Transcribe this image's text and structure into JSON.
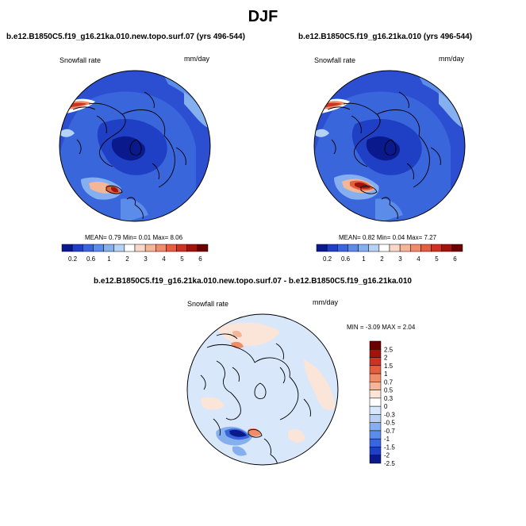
{
  "main_title": "DJF",
  "panels": [
    {
      "title": "b.e12.B1850C5.f19_g16.21ka.010.new.topo.surf.07 (yrs 496-544)",
      "variable": "Snowfall rate",
      "units": "mm/day",
      "stats": {
        "mean_label": "MEAN=",
        "mean": "0.79",
        "min_label": "Min=",
        "min": "0.01",
        "max_label": "Max=",
        "max": "8.06"
      }
    },
    {
      "title": "b.e12.B1850C5.f19_g16.21ka.010 (yrs 496-544)",
      "variable": "Snowfall rate",
      "units": "mm/day",
      "stats": {
        "mean_label": "MEAN=",
        "mean": "0.82",
        "min_label": "Min=",
        "min": "0.04",
        "max_label": "Max=",
        "max": "7.27"
      }
    },
    {
      "title": "b.e12.B1850C5.f19_g16.21ka.010.new.topo.surf.07 - b.e12.B1850C5.f19_g16.21ka.010",
      "variable": "Snowfall rate",
      "units": "mm/day",
      "stats": {
        "min_label": "MIN =",
        "min": "-3.09",
        "max_label": "MAX =",
        "max": "2.04"
      }
    }
  ],
  "abs_colorbar": {
    "colors": [
      "#0a1a8c",
      "#1f3fc4",
      "#3a66dc",
      "#5b8cea",
      "#86afef",
      "#b6d2f5",
      "#ffffff",
      "#f9d8c8",
      "#f5b698",
      "#ef8c6a",
      "#e35f40",
      "#cc3320",
      "#a1140c",
      "#6b0000"
    ],
    "labels": [
      "0.2",
      "0.6",
      "1",
      "2",
      "3",
      "4",
      "5",
      "6"
    ]
  },
  "diff_colorbar": {
    "colors": [
      "#0a1a8c",
      "#1f3fc4",
      "#3a66dc",
      "#5b8cea",
      "#86afef",
      "#b6d2f5",
      "#d8e8fa",
      "#ffffff",
      "#fbe4d8",
      "#f5b698",
      "#ef8c6a",
      "#e35f40",
      "#cc3320",
      "#a1140c",
      "#6b0000"
    ],
    "labels": [
      "2.5",
      "2",
      "1.5",
      "1",
      "0.7",
      "0.5",
      "0.3",
      "0",
      "-0.3",
      "-0.5",
      "-0.7",
      "-1",
      "-1.5",
      "-2",
      "-2.5"
    ]
  }
}
